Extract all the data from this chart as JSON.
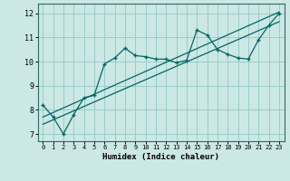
{
  "background_color": "#cce8e4",
  "grid_color": "#99cccc",
  "line_color": "#006666",
  "marker_color": "#006666",
  "xlabel": "Humidex (Indice chaleur)",
  "xlim": [
    -0.5,
    23.5
  ],
  "ylim": [
    6.7,
    12.4
  ],
  "xticks": [
    0,
    1,
    2,
    3,
    4,
    5,
    6,
    7,
    8,
    9,
    10,
    11,
    12,
    13,
    14,
    15,
    16,
    17,
    18,
    19,
    20,
    21,
    22,
    23
  ],
  "yticks": [
    7,
    8,
    9,
    10,
    11,
    12
  ],
  "main_x": [
    0,
    1,
    2,
    3,
    4,
    5,
    6,
    7,
    8,
    9,
    10,
    11,
    12,
    13,
    14,
    15,
    16,
    17,
    18,
    19,
    20,
    21,
    22,
    23
  ],
  "main_y": [
    8.2,
    7.7,
    7.0,
    7.8,
    8.5,
    8.6,
    9.9,
    10.15,
    10.55,
    10.25,
    10.2,
    10.1,
    10.1,
    9.95,
    10.05,
    11.3,
    11.1,
    10.5,
    10.3,
    10.15,
    10.1,
    10.9,
    11.5,
    12.0
  ],
  "line2_x": [
    0,
    23
  ],
  "line2_y": [
    7.7,
    12.05
  ],
  "line3_x": [
    0,
    23
  ],
  "line3_y": [
    7.4,
    11.65
  ]
}
